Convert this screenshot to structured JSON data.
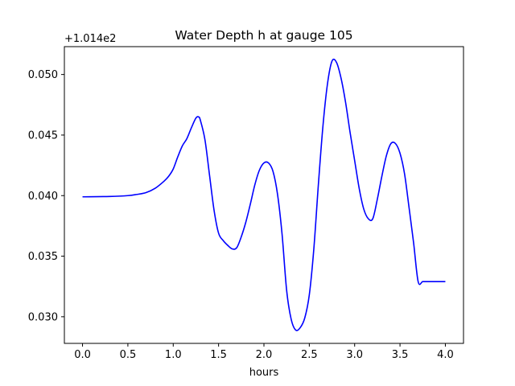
{
  "chart_data": {
    "type": "line",
    "title": "Water Depth h at gauge 105",
    "xlabel": "hours",
    "ylabel": "",
    "y_offset_label": "+1.014e2",
    "xlim": [
      -0.2,
      4.2
    ],
    "ylim": [
      0.0278,
      0.0523
    ],
    "grid": false,
    "legend": "none",
    "line_color": "#0000ff",
    "x_ticks": [
      0.0,
      0.5,
      1.0,
      1.5,
      2.0,
      2.5,
      3.0,
      3.5,
      4.0
    ],
    "x_tick_labels": [
      "0.0",
      "0.5",
      "1.0",
      "1.5",
      "2.0",
      "2.5",
      "3.0",
      "3.5",
      "4.0"
    ],
    "y_ticks": [
      0.03,
      0.035,
      0.04,
      0.045,
      0.05
    ],
    "y_tick_labels": [
      "0.030",
      "0.035",
      "0.040",
      "0.045",
      "0.050"
    ],
    "series": [
      {
        "x": [
          0.0,
          0.3,
          0.5,
          0.6,
          0.7,
          0.8,
          0.9,
          0.95,
          1.0,
          1.05,
          1.1,
          1.15,
          1.2,
          1.25,
          1.28,
          1.3,
          1.35,
          1.4,
          1.45,
          1.5,
          1.55,
          1.6,
          1.65,
          1.7,
          1.75,
          1.8,
          1.85,
          1.9,
          1.95,
          2.0,
          2.05,
          2.1,
          2.15,
          2.2,
          2.25,
          2.3,
          2.35,
          2.4,
          2.45,
          2.5,
          2.55,
          2.6,
          2.65,
          2.7,
          2.75,
          2.8,
          2.85,
          2.9,
          2.95,
          3.0,
          3.05,
          3.1,
          3.15,
          3.2,
          3.25,
          3.3,
          3.35,
          3.4,
          3.45,
          3.5,
          3.55,
          3.6,
          3.65,
          3.7,
          3.75,
          3.8,
          3.85,
          3.9,
          3.95,
          4.0
        ],
        "y": [
          0.0399,
          0.03993,
          0.04,
          0.0401,
          0.04025,
          0.0406,
          0.0412,
          0.0416,
          0.0422,
          0.0432,
          0.0441,
          0.0447,
          0.0456,
          0.0464,
          0.0465,
          0.0462,
          0.0446,
          0.0417,
          0.0388,
          0.0369,
          0.0363,
          0.0359,
          0.0356,
          0.0357,
          0.0366,
          0.0378,
          0.0393,
          0.0409,
          0.0421,
          0.0427,
          0.0427,
          0.042,
          0.0401,
          0.0368,
          0.0322,
          0.0298,
          0.0289,
          0.0291,
          0.0299,
          0.0318,
          0.0356,
          0.0409,
          0.0457,
          0.0492,
          0.0511,
          0.051,
          0.0497,
          0.0477,
          0.0452,
          0.0429,
          0.0406,
          0.0389,
          0.0381,
          0.0381,
          0.0397,
          0.0416,
          0.0433,
          0.0443,
          0.0443,
          0.0435,
          0.0418,
          0.039,
          0.0361,
          0.0329,
          0.0329,
          0.0329,
          0.0329,
          0.0329,
          0.0329,
          0.0329
        ]
      }
    ]
  }
}
